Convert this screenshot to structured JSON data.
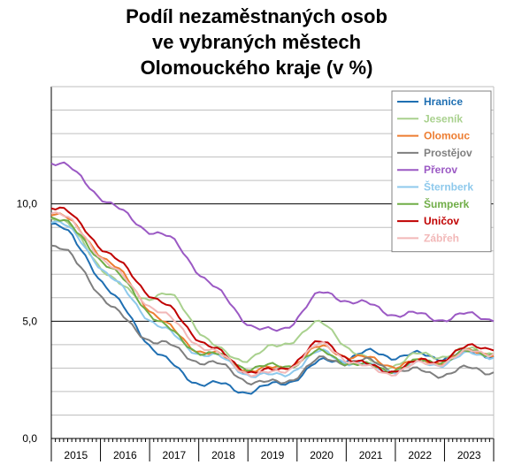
{
  "chart_data": {
    "type": "line",
    "title_lines": [
      "Podíl nezaměstnaných osob",
      "ve vybraných městech",
      "Olomouckého kraje (v %)"
    ],
    "x": [
      "2015",
      "2016",
      "2017",
      "2018",
      "2019",
      "2020",
      "2021",
      "2022",
      "2023"
    ],
    "ylim": [
      0,
      15
    ],
    "y_ticks": [
      0,
      5,
      10
    ],
    "y_tick_labels": [
      "0,0",
      "5,0",
      "10,0"
    ],
    "y_minor_step": 1,
    "grid": true,
    "legend_position": "top-right",
    "series": [
      {
        "name": "Hranice",
        "color": "#1f6fb2",
        "values": [
          8.2,
          5.4,
          3.0,
          2.2,
          2.2,
          3.2,
          3.6,
          3.5,
          3.6
        ]
      },
      {
        "name": "Jeseník",
        "color": "#a9d18e",
        "values": [
          8.6,
          6.3,
          5.9,
          3.6,
          3.8,
          4.8,
          3.2,
          3.5,
          3.7
        ]
      },
      {
        "name": "Olomouc",
        "color": "#ed7d31",
        "values": [
          8.9,
          6.8,
          4.5,
          3.4,
          2.9,
          3.8,
          3.3,
          3.2,
          3.6
        ]
      },
      {
        "name": "Prostějov",
        "color": "#7f7f7f",
        "values": [
          7.4,
          5.0,
          3.8,
          3.0,
          2.3,
          3.3,
          3.2,
          2.8,
          2.9
        ]
      },
      {
        "name": "Přerov",
        "color": "#9b59c4",
        "values": [
          11.2,
          9.5,
          8.3,
          6.0,
          4.5,
          6.1,
          5.6,
          5.2,
          5.2
        ]
      },
      {
        "name": "Šternberk",
        "color": "#8ec9ec",
        "values": [
          8.5,
          6.2,
          4.3,
          3.3,
          2.6,
          3.6,
          3.0,
          3.1,
          3.5
        ]
      },
      {
        "name": "Šumperk",
        "color": "#70ad47",
        "values": [
          8.7,
          6.6,
          4.4,
          3.4,
          3.0,
          3.6,
          3.0,
          3.2,
          3.6
        ]
      },
      {
        "name": "Uničov",
        "color": "#c00000",
        "values": [
          9.2,
          7.2,
          5.3,
          3.5,
          2.8,
          4.0,
          3.0,
          3.2,
          3.8
        ]
      },
      {
        "name": "Zábřeh",
        "color": "#f2b8b8",
        "values": [
          8.9,
          6.7,
          4.9,
          3.4,
          2.7,
          3.9,
          2.9,
          3.1,
          3.6
        ]
      }
    ]
  },
  "colors": {
    "major_grid": "#000000",
    "minor_grid": "#bfbfbf",
    "axis": "#000000",
    "background": "#ffffff"
  }
}
